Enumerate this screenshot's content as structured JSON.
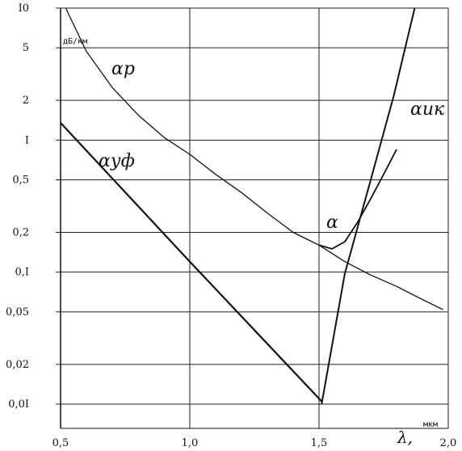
{
  "chart_data": {
    "type": "line",
    "x_ticks": [
      "0,5",
      "1,0",
      "1,5",
      "2,0"
    ],
    "y_ticks": [
      {
        "value": 10,
        "label": "I0"
      },
      {
        "value": 5,
        "label": "5"
      },
      {
        "value": 2,
        "label": "2"
      },
      {
        "value": 1,
        "label": "I"
      },
      {
        "value": 0.5,
        "label": "0,5"
      },
      {
        "value": 0.2,
        "label": "0,2"
      },
      {
        "value": 0.1,
        "label": "0,I"
      },
      {
        "value": 0.05,
        "label": "0,05"
      },
      {
        "value": 0.02,
        "label": "0,02"
      },
      {
        "value": 0.01,
        "label": "0,0I"
      }
    ],
    "ylabel_unit": "дБ/км",
    "xlabel_unit": "мкм",
    "xlabel": "λ,",
    "ylim": [
      0.01,
      10
    ],
    "xlim": [
      0.5,
      2.0
    ],
    "y_scale": "log",
    "grid": true,
    "series": [
      {
        "name": "αр",
        "points": [
          [
            0.52,
            10
          ],
          [
            0.6,
            4.7
          ],
          [
            0.7,
            2.5
          ],
          [
            0.8,
            1.55
          ],
          [
            0.9,
            1.05
          ],
          [
            1.0,
            0.78
          ],
          [
            1.1,
            0.55
          ],
          [
            1.2,
            0.4
          ],
          [
            1.3,
            0.28
          ],
          [
            1.4,
            0.2
          ],
          [
            1.5,
            0.16
          ],
          [
            1.6,
            0.12
          ],
          [
            1.7,
            0.095
          ],
          [
            1.8,
            0.078
          ],
          [
            1.9,
            0.062
          ],
          [
            1.98,
            0.052
          ]
        ]
      },
      {
        "name": "αуф",
        "points": [
          [
            0.5,
            1.35
          ],
          [
            1.0,
            0.12
          ],
          [
            1.51,
            0.0105
          ]
        ]
      },
      {
        "name": "αик",
        "points": [
          [
            1.51,
            0.01
          ],
          [
            1.6,
            0.098
          ],
          [
            1.7,
            0.5
          ],
          [
            1.79,
            2.2
          ],
          [
            1.87,
            10
          ]
        ]
      },
      {
        "name": "α",
        "points": [
          [
            1.5,
            0.16
          ],
          [
            1.55,
            0.15
          ],
          [
            1.6,
            0.17
          ],
          [
            1.65,
            0.24
          ],
          [
            1.7,
            0.36
          ],
          [
            1.75,
            0.55
          ],
          [
            1.8,
            0.85
          ]
        ]
      }
    ],
    "curve_labels": [
      "αр",
      "αуф",
      "αик",
      "α"
    ],
    "series_color": "#111111"
  }
}
